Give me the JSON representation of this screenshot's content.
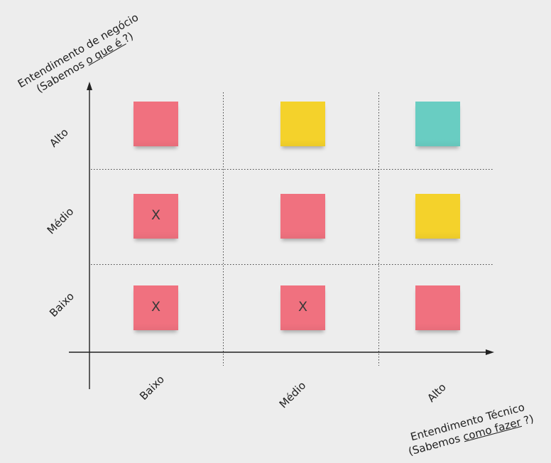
{
  "colors": {
    "pink": "#f0717f",
    "yellow": "#f4d22b",
    "teal": "#69cdc2",
    "background": "#ededed"
  },
  "y_axis": {
    "title_line1": "Entendimento de negócio",
    "title_line2_prefix": "(Sabemos ",
    "title_line2_underlined": "o que é ",
    "title_line2_suffix": "?)",
    "levels": [
      "Alto",
      "Médio",
      "Baixo"
    ]
  },
  "x_axis": {
    "title_line1": "Entendimento Técnico",
    "title_line2_prefix": "(Sabemos ",
    "title_line2_underlined": "como fazer",
    "title_line2_suffix": " ?)",
    "levels": [
      "Baixo",
      "Médio",
      "Alto"
    ]
  },
  "grid": {
    "rows": [
      {
        "level": "Alto",
        "cells": [
          {
            "color": "pink",
            "mark": ""
          },
          {
            "color": "yellow",
            "mark": ""
          },
          {
            "color": "teal",
            "mark": ""
          }
        ]
      },
      {
        "level": "Médio",
        "cells": [
          {
            "color": "pink",
            "mark": "X"
          },
          {
            "color": "pink",
            "mark": ""
          },
          {
            "color": "yellow",
            "mark": ""
          }
        ]
      },
      {
        "level": "Baixo",
        "cells": [
          {
            "color": "pink",
            "mark": "X"
          },
          {
            "color": "pink",
            "mark": "X"
          },
          {
            "color": "pink",
            "mark": ""
          }
        ]
      }
    ]
  }
}
